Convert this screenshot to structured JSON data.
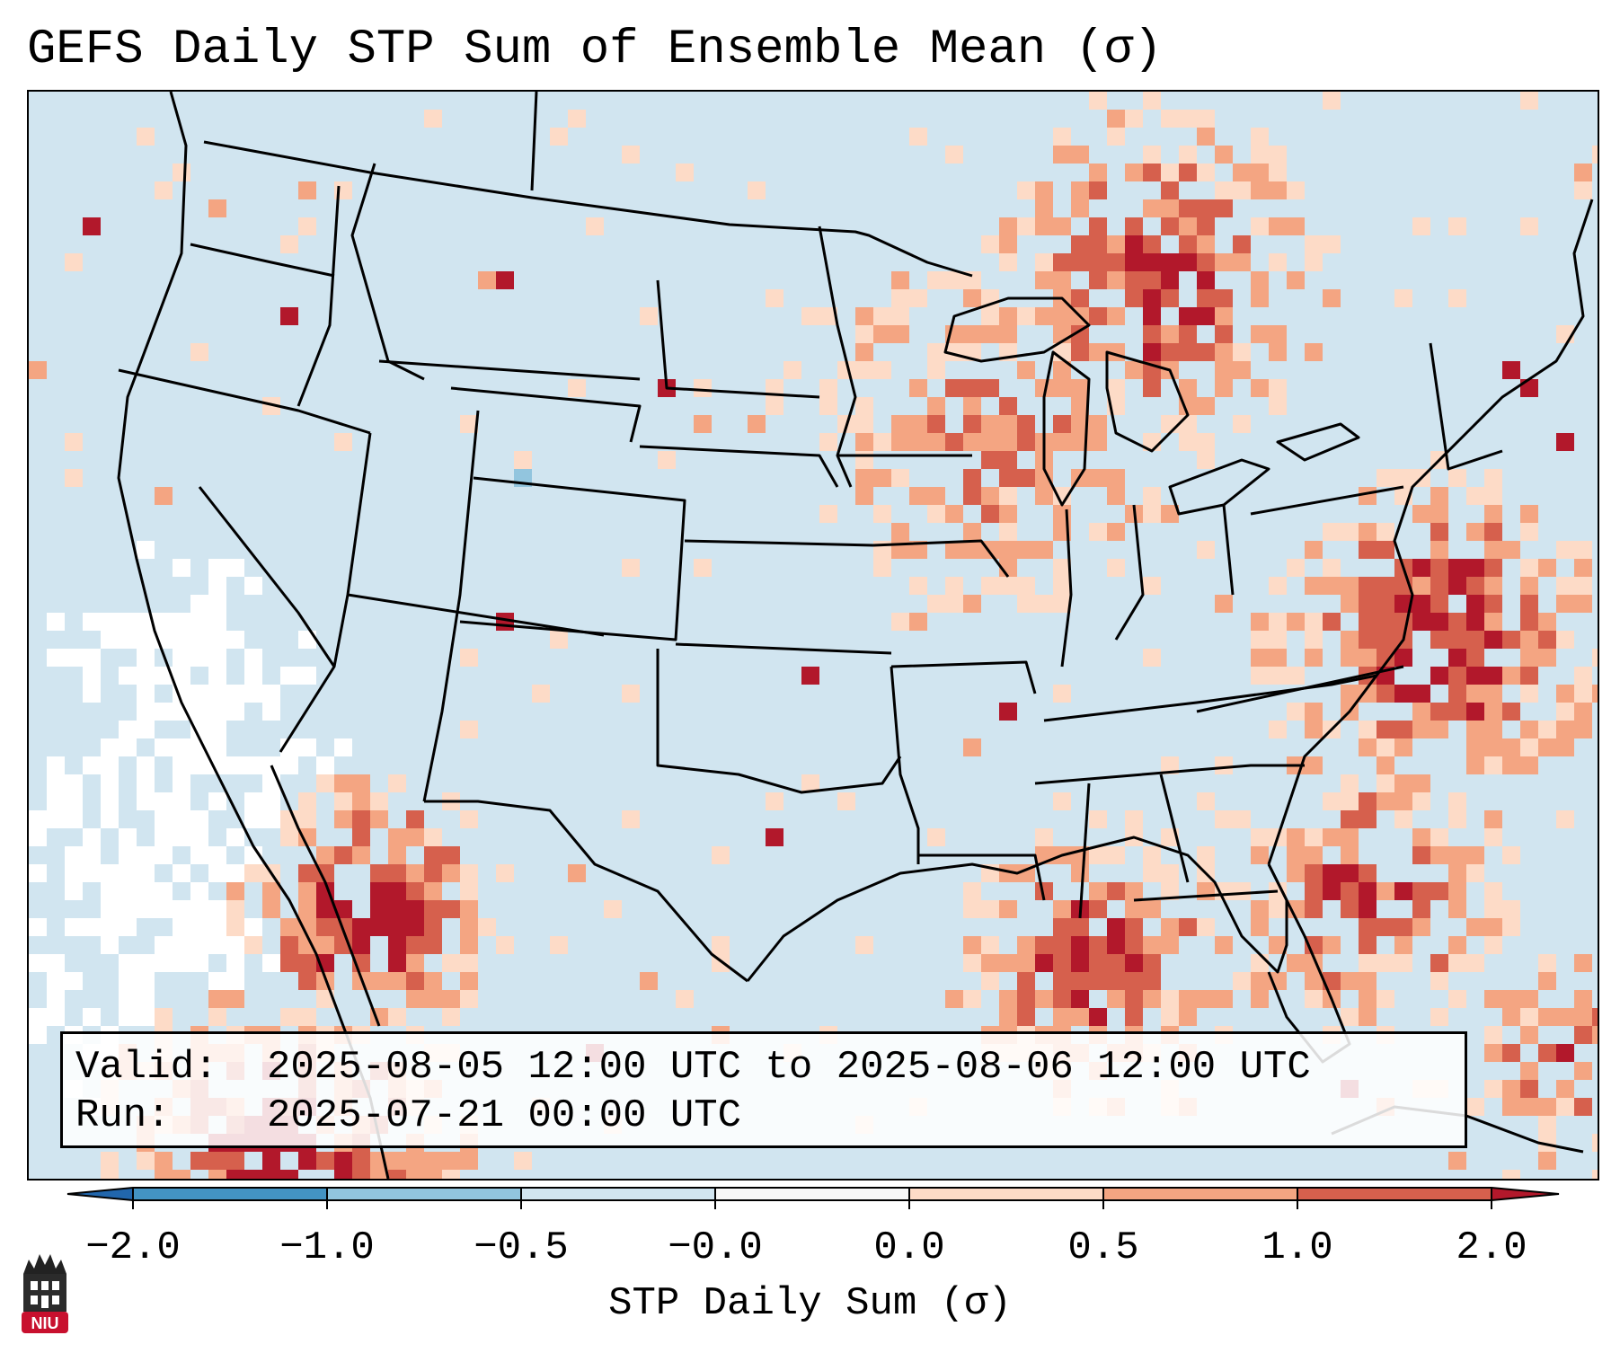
{
  "title": "GEFS Daily STP Sum of Ensemble Mean (σ)",
  "info": {
    "valid_label": "Valid:",
    "valid_value": "2025-08-05 12:00 UTC to 2025-08-06 12:00 UTC",
    "run_label": "Run:",
    "run_value": "2025-07-21 00:00 UTC"
  },
  "colorbar": {
    "label": "STP Daily Sum (σ)",
    "ticks": [
      "−2.0",
      "−1.0",
      "−0.5",
      "−0.0",
      "0.0",
      "0.5",
      "1.0",
      "2.0"
    ],
    "colors": [
      "#4393c3",
      "#92c5de",
      "#d1e5f0",
      "#f7f7f7",
      "#fddbc7",
      "#f4a582",
      "#d6604d"
    ],
    "under_color": "#2166ac",
    "over_color": "#b2182b"
  },
  "logo": {
    "text": "NIU"
  },
  "map": {
    "background_color": "#d1e5f0",
    "border_color": "#000000"
  }
}
